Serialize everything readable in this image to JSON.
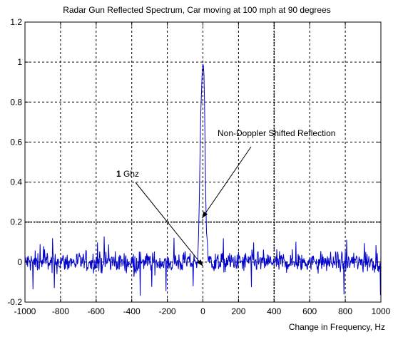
{
  "chart_data": {
    "type": "line",
    "title": "Radar Gun Reflected Spectrum, Car moving at 100 mph at 90 degrees",
    "xlabel": "Change in Frequency, Hz",
    "ylabel": "",
    "xlim": [
      -1000,
      1000
    ],
    "ylim": [
      -0.2,
      1.2
    ],
    "x_ticks": [
      -1000,
      -800,
      -600,
      -400,
      -200,
      0,
      200,
      400,
      600,
      800,
      1000
    ],
    "y_ticks": [
      -0.2,
      0,
      0.2,
      0.4,
      0.6,
      0.8,
      1,
      1.2
    ],
    "x_tick_labels": [
      "-1000",
      "-800",
      "-600",
      "-400",
      "-200",
      "0",
      "200",
      "400",
      "600",
      "800",
      "1000"
    ],
    "y_tick_labels": [
      "-0.2",
      "0",
      "0.2",
      "0.4",
      "0.6",
      "0.8",
      "1",
      "1.2"
    ],
    "grid": true,
    "reference_lines": [
      {
        "axis": "x",
        "value": 400
      },
      {
        "axis": "y",
        "value": 0.2
      }
    ],
    "series": [
      {
        "color": "#0000cc",
        "noise": {
          "x_range": [
            -1000,
            1000
          ],
          "mean": 0.0,
          "spread": 0.08,
          "min_dip": -0.17,
          "max_spike": 0.13
        },
        "peak": {
          "x": [
            -30,
            -25,
            -20,
            -16,
            -12,
            -8,
            -5,
            -3,
            0,
            3,
            6,
            9,
            12,
            16,
            20,
            25,
            30
          ],
          "y": [
            0.0,
            0.12,
            0.32,
            0.55,
            0.75,
            0.85,
            0.93,
            0.97,
            0.99,
            0.98,
            0.93,
            0.8,
            0.6,
            0.32,
            0.15,
            0.1,
            0.0
          ]
        }
      }
    ],
    "annotations": [
      {
        "bold_part": "1",
        "text": " Ghz",
        "target": [
          0,
          -0.02
        ]
      },
      {
        "text": "Non-Doppler Shifted Reflection",
        "target": [
          -5,
          0.22
        ]
      }
    ]
  }
}
